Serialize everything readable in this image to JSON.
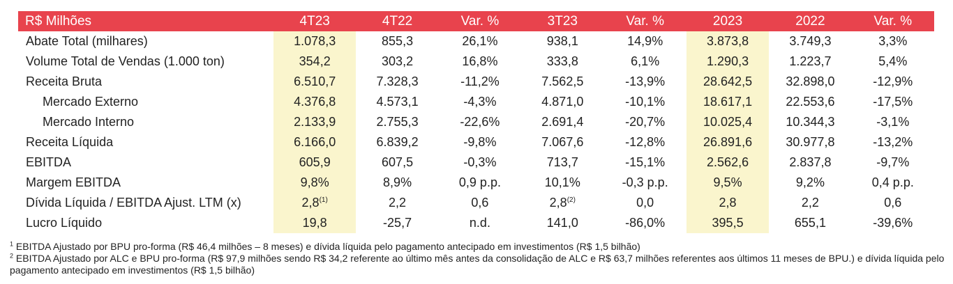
{
  "table": {
    "header": [
      "R$ Milhões",
      "4T23",
      "4T22",
      "Var. %",
      "3T23",
      "Var. %",
      "2023",
      "2022",
      "Var. %"
    ],
    "rows": [
      {
        "label": "Abate Total (milhares)",
        "indent": false,
        "cells": [
          [
            "1.078,3",
            ""
          ],
          [
            "855,3",
            ""
          ],
          [
            "26,1%",
            ""
          ],
          [
            "938,1",
            ""
          ],
          [
            "14,9%",
            ""
          ],
          [
            "3.873,8",
            ""
          ],
          [
            "3.749,3",
            ""
          ],
          [
            "3,3%",
            ""
          ]
        ]
      },
      {
        "label": "Volume Total de Vendas (1.000 ton)",
        "indent": false,
        "cells": [
          [
            "354,2",
            ""
          ],
          [
            "303,2",
            ""
          ],
          [
            "16,8%",
            ""
          ],
          [
            "333,8",
            ""
          ],
          [
            "6,1%",
            ""
          ],
          [
            "1.290,3",
            ""
          ],
          [
            "1.223,7",
            ""
          ],
          [
            "5,4%",
            ""
          ]
        ]
      },
      {
        "label": "Receita Bruta",
        "indent": false,
        "cells": [
          [
            "6.510,7",
            ""
          ],
          [
            "7.328,3",
            ""
          ],
          [
            "-11,2%",
            ""
          ],
          [
            "7.562,5",
            ""
          ],
          [
            "-13,9%",
            ""
          ],
          [
            "28.642,5",
            ""
          ],
          [
            "32.898,0",
            ""
          ],
          [
            "-12,9%",
            ""
          ]
        ]
      },
      {
        "label": "Mercado Externo",
        "indent": true,
        "cells": [
          [
            "4.376,8",
            ""
          ],
          [
            "4.573,1",
            ""
          ],
          [
            "-4,3%",
            ""
          ],
          [
            "4.871,0",
            ""
          ],
          [
            "-10,1%",
            ""
          ],
          [
            "18.617,1",
            ""
          ],
          [
            "22.553,6",
            ""
          ],
          [
            "-17,5%",
            ""
          ]
        ]
      },
      {
        "label": "Mercado Interno",
        "indent": true,
        "cells": [
          [
            "2.133,9",
            ""
          ],
          [
            "2.755,3",
            ""
          ],
          [
            "-22,6%",
            ""
          ],
          [
            "2.691,4",
            ""
          ],
          [
            "-20,7%",
            ""
          ],
          [
            "10.025,4",
            ""
          ],
          [
            "10.344,3",
            ""
          ],
          [
            "-3,1%",
            ""
          ]
        ]
      },
      {
        "label": "Receita Líquida",
        "indent": false,
        "cells": [
          [
            "6.166,0",
            ""
          ],
          [
            "6.839,2",
            ""
          ],
          [
            "-9,8%",
            ""
          ],
          [
            "7.067,6",
            ""
          ],
          [
            "-12,8%",
            ""
          ],
          [
            "26.891,6",
            ""
          ],
          [
            "30.977,8",
            ""
          ],
          [
            "-13,2%",
            ""
          ]
        ]
      },
      {
        "label": "EBITDA",
        "indent": false,
        "cells": [
          [
            "605,9",
            ""
          ],
          [
            "607,5",
            ""
          ],
          [
            "-0,3%",
            ""
          ],
          [
            "713,7",
            ""
          ],
          [
            "-15,1%",
            ""
          ],
          [
            "2.562,6",
            ""
          ],
          [
            "2.837,8",
            ""
          ],
          [
            "-9,7%",
            ""
          ]
        ]
      },
      {
        "label": "Margem EBITDA",
        "indent": false,
        "cells": [
          [
            "9,8%",
            ""
          ],
          [
            "8,9%",
            ""
          ],
          [
            "0,9 p.p.",
            ""
          ],
          [
            "10,1%",
            ""
          ],
          [
            "-0,3 p.p.",
            ""
          ],
          [
            "9,5%",
            ""
          ],
          [
            "9,2%",
            ""
          ],
          [
            "0,4 p.p.",
            ""
          ]
        ]
      },
      {
        "label": "Dívida Líquida / EBITDA Ajust. LTM (x)",
        "indent": false,
        "cells": [
          [
            "2,8",
            "(1)"
          ],
          [
            "2,2",
            ""
          ],
          [
            "0,6",
            ""
          ],
          [
            "2,8",
            "(2)"
          ],
          [
            "0,0",
            ""
          ],
          [
            "2,8",
            ""
          ],
          [
            "2,2",
            ""
          ],
          [
            "0,6",
            ""
          ]
        ]
      },
      {
        "label": "Lucro Líquido",
        "indent": false,
        "cells": [
          [
            "19,8",
            ""
          ],
          [
            "-25,7",
            ""
          ],
          [
            "n.d.",
            ""
          ],
          [
            "141,0",
            ""
          ],
          [
            "-86,0%",
            ""
          ],
          [
            "395,5",
            ""
          ],
          [
            "655,1",
            ""
          ],
          [
            "-39,6%",
            ""
          ]
        ]
      }
    ],
    "highlight_columns": [
      1,
      6
    ],
    "colors": {
      "header_bg": "#e8434d",
      "header_text": "#ffffff",
      "highlight_bg": "#faf5cd"
    }
  },
  "footnotes": [
    {
      "mark": "1",
      "text": " EBITDA Ajustado por BPU pro-forma (R$ 46,4 milhões – 8 meses) e dívida líquida  pelo pagamento antecipado em investimentos (R$ 1,5 bilhão)"
    },
    {
      "mark": "2",
      "text": " EBITDA Ajustado por ALC e BPU pro-forma (R$ 97,9 milhões sendo R$ 34,2 referente ao último mês antes da consolidação de ALC e R$ 63,7 milhões referentes aos últimos 11 meses de BPU.) e dívida líquida  pelo pagamento antecipado em investimentos (R$ 1,5 bilhão)"
    }
  ]
}
